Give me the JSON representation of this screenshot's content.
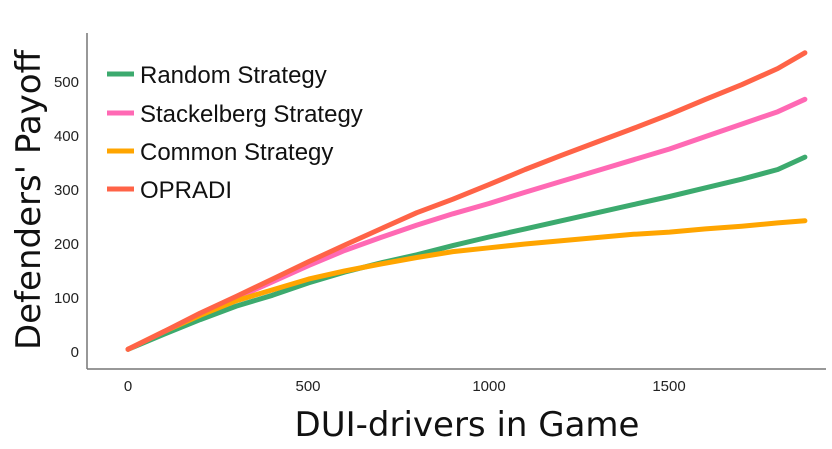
{
  "chart_data": {
    "type": "line",
    "title": "",
    "xlabel": "DUI-drivers in Game",
    "ylabel": "Defenders' Payoff",
    "xlim": [
      -70,
      1940
    ],
    "ylim": [
      -30,
      590
    ],
    "xticks": [
      0,
      500,
      1000,
      1500
    ],
    "yticks": [
      0,
      100,
      200,
      300,
      400,
      500
    ],
    "grid": false,
    "legend_position": "upper left",
    "x": [
      0,
      100,
      200,
      300,
      400,
      500,
      600,
      700,
      800,
      900,
      1000,
      1100,
      1200,
      1300,
      1400,
      1500,
      1600,
      1700,
      1800,
      1875
    ],
    "series": [
      {
        "name": "Random Strategy",
        "color": "#3CAA6E",
        "values": [
          5,
          33,
          60,
          85,
          105,
          128,
          148,
          165,
          180,
          197,
          213,
          228,
          243,
          258,
          273,
          288,
          304,
          320,
          338,
          361
        ]
      },
      {
        "name": "Stackelberg Strategy",
        "color": "#FF69B4",
        "values": [
          5,
          38,
          70,
          100,
          130,
          160,
          188,
          212,
          235,
          256,
          275,
          296,
          316,
          336,
          356,
          376,
          399,
          422,
          445,
          468
        ]
      },
      {
        "name": "Common Strategy",
        "color": "#FFA500",
        "values": [
          5,
          38,
          68,
          95,
          115,
          135,
          150,
          163,
          175,
          186,
          193,
          200,
          206,
          212,
          218,
          222,
          228,
          233,
          239,
          243
        ]
      },
      {
        "name": "OPRADI",
        "color": "#FF6347",
        "values": [
          5,
          38,
          72,
          103,
          135,
          167,
          198,
          228,
          258,
          283,
          310,
          338,
          364,
          389,
          414,
          440,
          468,
          495,
          525,
          554
        ]
      }
    ]
  },
  "legend": {
    "items": [
      {
        "label": "Random Strategy",
        "color": "#3CAA6E"
      },
      {
        "label": "Stackelberg Strategy",
        "color": "#FF69B4"
      },
      {
        "label": "Common Strategy",
        "color": "#FFA500"
      },
      {
        "label": "OPRADI",
        "color": "#FF6347"
      }
    ]
  },
  "axes": {
    "x_title": "DUI-drivers in Game",
    "y_title": "Defenders' Payoff",
    "x_tick_labels": [
      "0",
      "500",
      "1000",
      "1500"
    ],
    "y_tick_labels": [
      "0",
      "100",
      "200",
      "300",
      "400",
      "500"
    ]
  }
}
